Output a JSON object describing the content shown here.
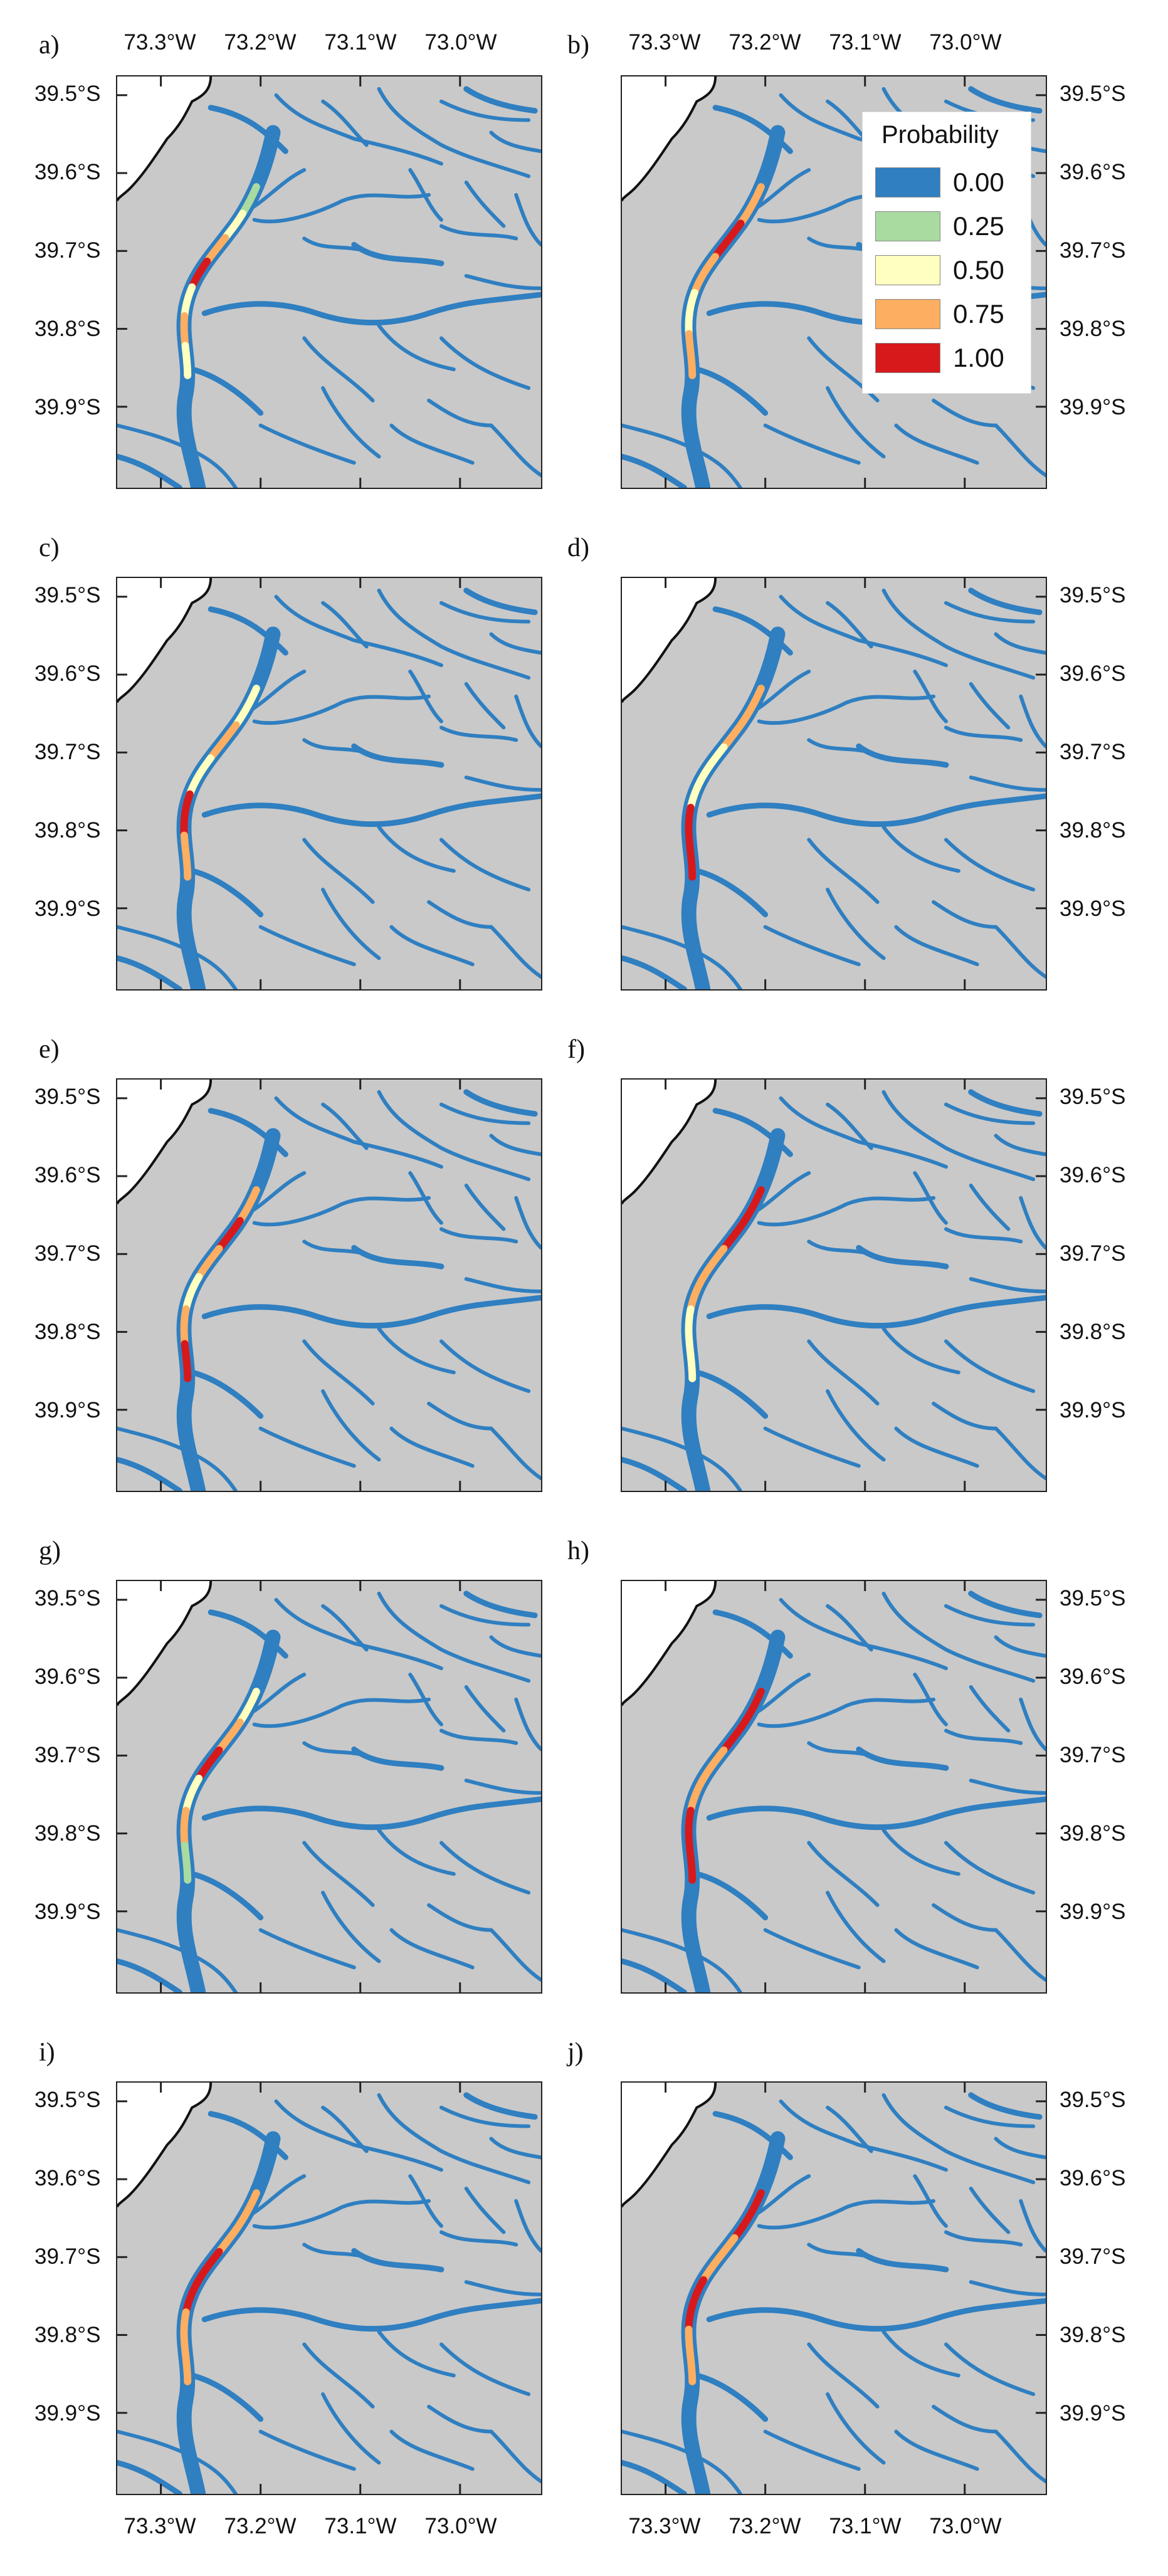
{
  "figure": {
    "panels": [
      {
        "label": "a)"
      },
      {
        "label": "b)"
      },
      {
        "label": "c)"
      },
      {
        "label": "d)"
      },
      {
        "label": "e)"
      },
      {
        "label": "f)"
      },
      {
        "label": "g)"
      },
      {
        "label": "h)"
      },
      {
        "label": "i)"
      },
      {
        "label": "j)"
      }
    ],
    "latitude_labels": [
      "39.5°S",
      "39.6°S",
      "39.7°S",
      "39.8°S",
      "39.9°S"
    ],
    "longitude_labels": [
      "73.3°W",
      "73.2°W",
      "73.1°W",
      "73.0°W"
    ],
    "legend": {
      "title": "Probability",
      "entries": [
        {
          "value": "0.00",
          "color": "#2f7fc1"
        },
        {
          "value": "0.25",
          "color": "#a9dba0"
        },
        {
          "value": "0.50",
          "color": "#ffffc0"
        },
        {
          "value": "0.75",
          "color": "#fdae61"
        },
        {
          "value": "1.00",
          "color": "#d7191c"
        }
      ]
    },
    "colors": {
      "land": "#c9c9c9",
      "river": "#2f7fc1",
      "coastline": "#111111"
    }
  }
}
